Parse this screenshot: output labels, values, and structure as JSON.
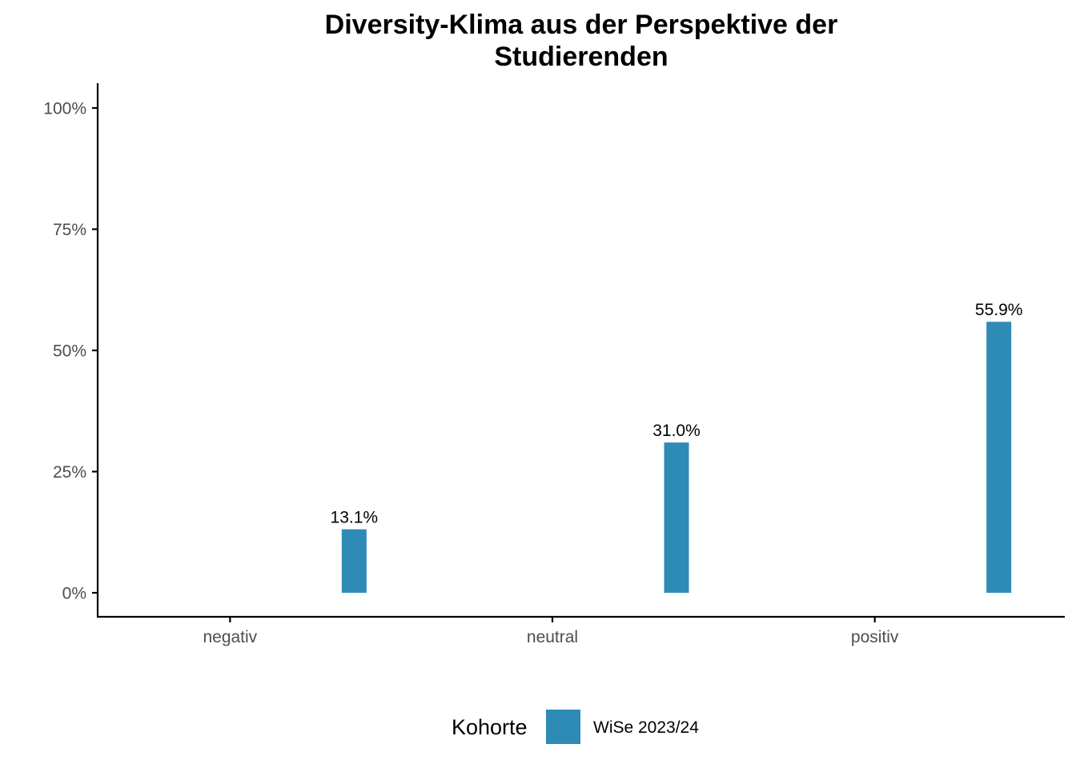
{
  "chart_data": {
    "type": "bar",
    "title_lines": [
      "Diversity-Klima aus der Perspektive der",
      "Studierenden"
    ],
    "xlabel": "",
    "ylabel": "",
    "categories": [
      "negativ",
      "neutral",
      "positiv"
    ],
    "series": [
      {
        "name": "WiSe 2023/24",
        "color": "#2E8BB6",
        "values": [
          13.1,
          31.0,
          55.9
        ],
        "labels": [
          "13.1%",
          "31.0%",
          "55.9%"
        ]
      }
    ],
    "ylim": [
      0,
      100
    ],
    "yticks": [
      0,
      25,
      50,
      75,
      100
    ],
    "ytick_labels": [
      "0%",
      "25%",
      "50%",
      "75%",
      "100%"
    ],
    "legend": {
      "title": "Kohorte",
      "position": "bottom"
    },
    "grid": false
  }
}
